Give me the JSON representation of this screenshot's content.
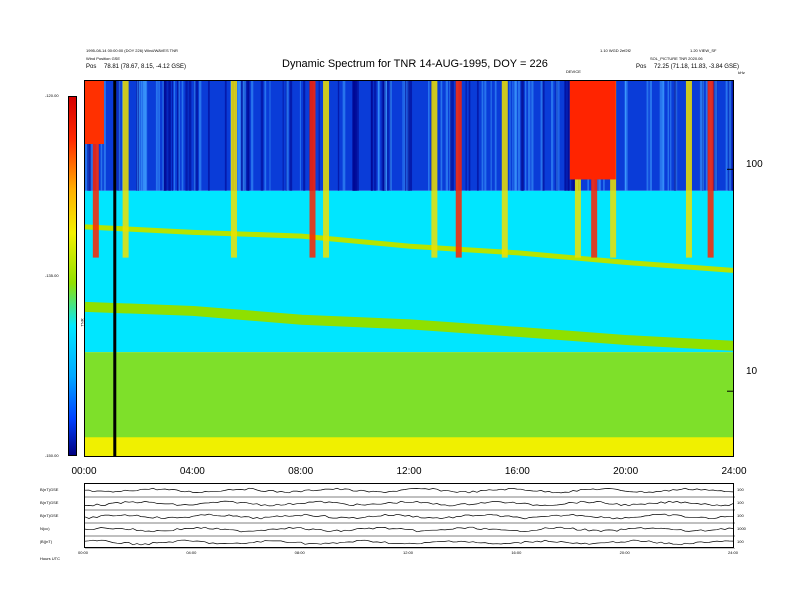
{
  "title": "Dynamic Spectrum for TNR 14-AUG-1995, DOY = 226",
  "header": {
    "left_line1": "1995-08-14 00:00:00 (DOY 226) Wind/WAVES TNR",
    "left_line2": "Wind Position GSE",
    "left_pos_label": "Pos",
    "left_pos_value": "78.81 (78.67, 8.15, -4.12 GSE)",
    "right_line1": "1.10 WGD 2ef2f2",
    "right_line2": "1.20 VIEW_SF",
    "right_line3": "SOL_PICTURE TNR 2020.06",
    "right_pos_label": "Pos",
    "right_pos_value": "72.25 (71.18, 11.83, -3.84 GSE)",
    "right_top_mark": "kHz",
    "center_mark": "DEVICE"
  },
  "colorbar": {
    "label": "TNR",
    "ticks": [
      "-120.00",
      "-135.00",
      "-150.00"
    ],
    "colors": [
      "#d40000",
      "#ff2a00",
      "#ffb000",
      "#f3f000",
      "#90e000",
      "#00e8ff",
      "#00a8ff",
      "#0040ff",
      "#000080"
    ]
  },
  "chart_data": {
    "type": "heatmap",
    "title": "Dynamic Spectrum for TNR 14-AUG-1995, DOY = 226",
    "x_ticks": [
      "00:00",
      "04:00",
      "08:00",
      "12:00",
      "16:00",
      "20:00",
      "24:00"
    ],
    "xlim": [
      0,
      24
    ],
    "y_ticks": [
      "100",
      "10"
    ],
    "yscale": "log",
    "ylim": [
      5,
      250
    ],
    "color_ticks": [
      "-120.00",
      "-135.00",
      "-150.00"
    ],
    "color_range": [
      -150,
      -120
    ],
    "bands": [
      {
        "name_hint": "upper",
        "y_from": 80,
        "y_to": 250,
        "dominant": "dark blue"
      },
      {
        "name_hint": "mid",
        "y_from": 15,
        "y_to": 80,
        "dominant": "cyan"
      },
      {
        "name_hint": "low",
        "y_from": 5,
        "y_to": 15,
        "dominant": "green"
      }
    ],
    "bursts_hours": [
      0.4,
      1.5,
      5.5,
      8.4,
      8.9,
      12.9,
      13.8,
      15.5,
      18.2,
      18.8,
      19.5,
      22.3,
      23.1
    ],
    "marker_hour": 1.1
  },
  "bottom_panel": {
    "row_labels": [
      "B(nT)GSE",
      "B(nT)GSE",
      "B(nT)GSE",
      "N(cc)",
      "|B|(nT)"
    ],
    "right_labels": [
      "100",
      "100",
      "100",
      "1000",
      "100"
    ],
    "x_ticks": [
      "00:00",
      "04:00",
      "08:00",
      "12:00",
      "16:00",
      "20:00",
      "24:00"
    ],
    "footer": "Hours   UTC"
  }
}
